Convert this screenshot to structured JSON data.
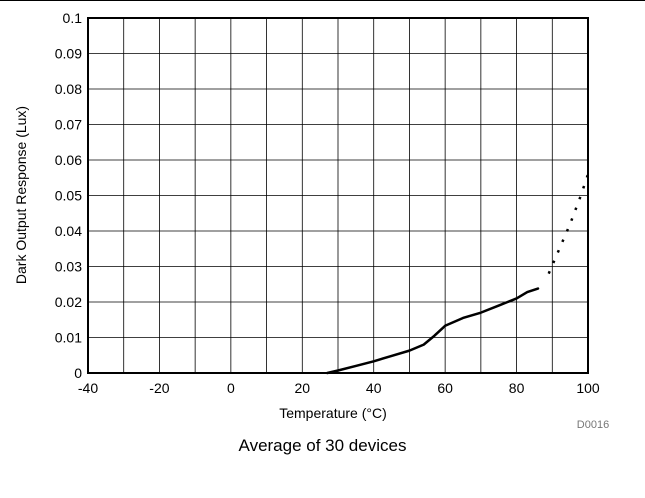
{
  "chart_data": {
    "type": "line",
    "title": "",
    "xlabel": "Temperature (°C)",
    "ylabel": "Dark Output Response (Lux)",
    "xlim": [
      -40,
      100
    ],
    "ylim": [
      0,
      0.1
    ],
    "x_ticks": [
      "-40",
      "-20",
      "0",
      "20",
      "40",
      "60",
      "80",
      "100"
    ],
    "y_ticks": [
      "0",
      "0.01",
      "0.02",
      "0.03",
      "0.04",
      "0.05",
      "0.06",
      "0.07",
      "0.08",
      "0.09",
      "0.1"
    ],
    "grid": true,
    "series": [
      {
        "style": "solid",
        "x": [
          27,
          30,
          35,
          40,
          45,
          50,
          54,
          57,
          60,
          65,
          70,
          75,
          80,
          83,
          86
        ],
        "y": [
          0.0,
          0.0007,
          0.002,
          0.0033,
          0.0048,
          0.0063,
          0.008,
          0.0105,
          0.0133,
          0.0155,
          0.017,
          0.019,
          0.021,
          0.0228,
          0.0238
        ]
      },
      {
        "style": "dotted",
        "x": [
          89,
          92,
          95,
          98,
          100
        ],
        "y": [
          0.028,
          0.035,
          0.042,
          0.05,
          0.056
        ]
      }
    ],
    "figure_id": "D0016",
    "caption": "Average of 30 devices"
  }
}
